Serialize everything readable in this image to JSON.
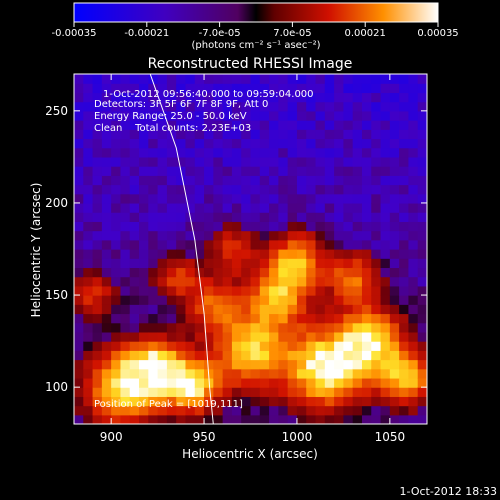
{
  "chart_data": {
    "type": "heatmap",
    "title": "Reconstructed RHESSI Image",
    "xlabel": "Heliocentric X (arcsec)",
    "ylabel": "Heliocentric Y (arcsec)",
    "xlim": [
      880,
      1070
    ],
    "ylim": [
      80,
      270
    ],
    "xticks": [
      900,
      950,
      1000,
      1050
    ],
    "yticks": [
      100,
      150,
      200,
      250
    ],
    "xtick_labels": [
      "900",
      "950",
      "1000",
      "1050"
    ],
    "ytick_labels": [
      "100",
      "150",
      "200",
      "250"
    ],
    "colorbar": {
      "range": [
        -0.00035,
        0.00035
      ],
      "colormap": "blue-purple-red-yellow-white",
      "tick_values": [
        -0.00035,
        -0.00021,
        -7e-05,
        7e-05,
        0.00021,
        0.00035
      ],
      "tick_labels": [
        "-0.00035",
        "-0.00021",
        "-7.0e-05",
        "7.0e-05",
        "0.00021",
        "0.00035"
      ],
      "unit_label": "(photons cm⁻² s⁻¹ asec⁻²)"
    },
    "annotations": [
      "1-Oct-2012 09:56:40.000 to 09:59:04.000",
      "Detectors: 3F 5F 6F 7F 8F 9F, Att 0",
      "Energy Range: 25.0 - 50.0 keV",
      "Clean    Total counts: 2.23E+03",
      "Position of Peak = [1019,111]"
    ],
    "grid": false,
    "limb_curve": [
      [
        921,
        270
      ],
      [
        935,
        230
      ],
      [
        945,
        180
      ],
      [
        950,
        140
      ],
      [
        953,
        100
      ],
      [
        955,
        80
      ]
    ],
    "emission_sources": [
      {
        "x": 905,
        "y": 100,
        "level": 0.85,
        "spread": 14
      },
      {
        "x": 925,
        "y": 110,
        "level": 0.9,
        "spread": 12
      },
      {
        "x": 945,
        "y": 100,
        "level": 0.8,
        "spread": 10
      },
      {
        "x": 975,
        "y": 120,
        "level": 0.85,
        "spread": 14
      },
      {
        "x": 990,
        "y": 150,
        "level": 0.75,
        "spread": 12
      },
      {
        "x": 1000,
        "y": 170,
        "level": 0.7,
        "spread": 10
      },
      {
        "x": 1015,
        "y": 110,
        "level": 1.0,
        "spread": 15
      },
      {
        "x": 1040,
        "y": 125,
        "level": 0.85,
        "spread": 13
      },
      {
        "x": 1060,
        "y": 105,
        "level": 0.8,
        "spread": 10
      },
      {
        "x": 1030,
        "y": 160,
        "level": 0.6,
        "spread": 10
      },
      {
        "x": 965,
        "y": 175,
        "level": 0.45,
        "spread": 9
      },
      {
        "x": 935,
        "y": 160,
        "level": 0.45,
        "spread": 9
      },
      {
        "x": 955,
        "y": 145,
        "level": 0.55,
        "spread": 10
      },
      {
        "x": 890,
        "y": 150,
        "level": 0.45,
        "spread": 9
      }
    ]
  },
  "footer": {
    "timestamp": "1-Oct-2012 18:33"
  }
}
